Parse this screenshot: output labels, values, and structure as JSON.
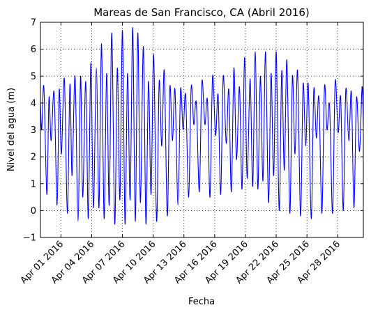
{
  "chart_data": {
    "type": "line",
    "title": "Mareas de San Francisco, CA (Abril 2016)",
    "xlabel": "Fecha",
    "ylabel": "Nivel del agua (m)",
    "xlim": [
      "2016-03-30",
      "2016-04-30T12:00"
    ],
    "ylim": [
      -1,
      7
    ],
    "grid": true,
    "line_color": "#0000ff",
    "x_ticks": [
      "2016-04-01",
      "2016-04-04",
      "2016-04-07",
      "2016-04-10",
      "2016-04-13",
      "2016-04-16",
      "2016-04-19",
      "2016-04-22",
      "2016-04-25",
      "2016-04-28"
    ],
    "x_tick_labels": [
      "Apr 01 2016",
      "Apr 04 2016",
      "Apr 07 2016",
      "Apr 10 2016",
      "Apr 13 2016",
      "Apr 16 2016",
      "Apr 19 2016",
      "Apr 22 2016",
      "Apr 25 2016",
      "Apr 28 2016"
    ],
    "y_ticks": [
      -1,
      0,
      1,
      2,
      3,
      4,
      5,
      6,
      7
    ],
    "y_tick_labels": [
      "−1",
      "0",
      "1",
      "2",
      "3",
      "4",
      "5",
      "6",
      "7"
    ],
    "series": [
      {
        "points": [
          [
            "2016-03-30T00:00",
            4.0
          ],
          [
            "2016-03-30T03:00",
            3.0
          ],
          [
            "2016-03-30T08:00",
            4.6
          ],
          [
            "2016-03-30T15:00",
            0.6
          ],
          [
            "2016-03-30T20:00",
            4.2
          ],
          [
            "2016-03-31T01:00",
            2.6
          ],
          [
            "2016-03-31T08:00",
            4.4
          ],
          [
            "2016-03-31T15:00",
            0.2
          ],
          [
            "2016-03-31T20:00",
            4.5
          ],
          [
            "2016-04-01T01:00",
            2.1
          ],
          [
            "2016-04-01T08:00",
            4.9
          ],
          [
            "2016-04-01T15:00",
            -0.1
          ],
          [
            "2016-04-01T21:00",
            4.7
          ],
          [
            "2016-04-02T02:00",
            1.3
          ],
          [
            "2016-04-02T09:00",
            5.0
          ],
          [
            "2016-04-02T16:00",
            -0.4
          ],
          [
            "2016-04-02T22:00",
            5.0
          ],
          [
            "2016-04-03T03:00",
            0.5
          ],
          [
            "2016-04-03T10:00",
            4.8
          ],
          [
            "2016-04-03T16:00",
            -0.3
          ],
          [
            "2016-04-03T22:00",
            5.5
          ],
          [
            "2016-04-04T04:00",
            0.1
          ],
          [
            "2016-04-04T11:00",
            5.3
          ],
          [
            "2016-04-04T17:00",
            0.1
          ],
          [
            "2016-04-04T23:00",
            6.2
          ],
          [
            "2016-04-05T05:00",
            -0.3
          ],
          [
            "2016-04-05T11:00",
            5.1
          ],
          [
            "2016-04-05T17:00",
            0.2
          ],
          [
            "2016-04-05T23:00",
            6.6
          ],
          [
            "2016-04-06T06:00",
            -0.5
          ],
          [
            "2016-04-06T12:00",
            5.3
          ],
          [
            "2016-04-06T18:00",
            0.4
          ],
          [
            "2016-04-07T00:00",
            6.7
          ],
          [
            "2016-04-07T06:00",
            -0.5
          ],
          [
            "2016-04-07T12:00",
            5.1
          ],
          [
            "2016-04-07T18:00",
            0.4
          ],
          [
            "2016-04-08T00:00",
            6.8
          ],
          [
            "2016-04-08T06:00",
            -0.4
          ],
          [
            "2016-04-08T12:00",
            6.6
          ],
          [
            "2016-04-08T18:00",
            0.3
          ],
          [
            "2016-04-09T01:00",
            6.1
          ],
          [
            "2016-04-09T07:00",
            -0.5
          ],
          [
            "2016-04-09T13:00",
            4.8
          ],
          [
            "2016-04-09T19:00",
            0.6
          ],
          [
            "2016-04-10T01:00",
            5.8
          ],
          [
            "2016-04-10T08:00",
            -0.4
          ],
          [
            "2016-04-10T14:00",
            4.8
          ],
          [
            "2016-04-10T20:00",
            2.4
          ],
          [
            "2016-04-11T02:00",
            5.2
          ],
          [
            "2016-04-11T09:00",
            -0.2
          ],
          [
            "2016-04-11T15:00",
            4.6
          ],
          [
            "2016-04-11T21:00",
            2.6
          ],
          [
            "2016-04-12T03:00",
            4.5
          ],
          [
            "2016-04-12T10:00",
            0.2
          ],
          [
            "2016-04-12T16:00",
            4.5
          ],
          [
            "2016-04-12T22:00",
            3.0
          ],
          [
            "2016-04-13T04:00",
            4.3
          ],
          [
            "2016-04-13T11:00",
            0.5
          ],
          [
            "2016-04-13T17:00",
            4.6
          ],
          [
            "2016-04-13T23:00",
            3.2
          ],
          [
            "2016-04-14T05:00",
            4.0
          ],
          [
            "2016-04-14T12:00",
            0.7
          ],
          [
            "2016-04-14T18:00",
            4.8
          ],
          [
            "2016-04-15T01:00",
            3.2
          ],
          [
            "2016-04-15T07:00",
            4.1
          ],
          [
            "2016-04-15T13:00",
            0.5
          ],
          [
            "2016-04-15T19:00",
            5.0
          ],
          [
            "2016-04-16T02:00",
            2.8
          ],
          [
            "2016-04-16T08:00",
            4.3
          ],
          [
            "2016-04-16T14:00",
            0.6
          ],
          [
            "2016-04-16T20:00",
            5.0
          ],
          [
            "2016-04-17T03:00",
            2.5
          ],
          [
            "2016-04-17T09:00",
            4.5
          ],
          [
            "2016-04-17T15:00",
            0.7
          ],
          [
            "2016-04-17T21:00",
            5.3
          ],
          [
            "2016-04-18T03:00",
            1.9
          ],
          [
            "2016-04-18T10:00",
            4.6
          ],
          [
            "2016-04-18T16:00",
            0.8
          ],
          [
            "2016-04-18T22:00",
            5.7
          ],
          [
            "2016-04-19T04:00",
            1.2
          ],
          [
            "2016-04-19T11:00",
            4.9
          ],
          [
            "2016-04-19T17:00",
            0.9
          ],
          [
            "2016-04-19T23:00",
            5.9
          ],
          [
            "2016-04-20T05:00",
            0.8
          ],
          [
            "2016-04-20T11:00",
            5.0
          ],
          [
            "2016-04-20T17:00",
            1.1
          ],
          [
            "2016-04-20T23:00",
            5.9
          ],
          [
            "2016-04-21T06:00",
            0.3
          ],
          [
            "2016-04-21T12:00",
            5.1
          ],
          [
            "2016-04-21T18:00",
            1.3
          ],
          [
            "2016-04-22T00:00",
            5.9
          ],
          [
            "2016-04-22T07:00",
            0.0
          ],
          [
            "2016-04-22T13:00",
            5.2
          ],
          [
            "2016-04-22T19:00",
            1.5
          ],
          [
            "2016-04-23T01:00",
            5.6
          ],
          [
            "2016-04-23T08:00",
            -0.1
          ],
          [
            "2016-04-23T14:00",
            5.0
          ],
          [
            "2016-04-23T20:00",
            2.1
          ],
          [
            "2016-04-24T02:00",
            5.2
          ],
          [
            "2016-04-24T09:00",
            -0.2
          ],
          [
            "2016-04-24T15:00",
            4.7
          ],
          [
            "2016-04-24T21:00",
            2.4
          ],
          [
            "2016-04-25T03:00",
            4.7
          ],
          [
            "2016-04-25T10:00",
            -0.3
          ],
          [
            "2016-04-25T16:00",
            4.5
          ],
          [
            "2016-04-25T22:00",
            2.7
          ],
          [
            "2016-04-26T04:00",
            4.2
          ],
          [
            "2016-04-26T11:00",
            -0.1
          ],
          [
            "2016-04-26T17:00",
            4.6
          ],
          [
            "2016-04-26T23:00",
            3.0
          ],
          [
            "2016-04-27T05:00",
            3.9
          ],
          [
            "2016-04-27T12:00",
            -0.1
          ],
          [
            "2016-04-27T18:00",
            4.8
          ],
          [
            "2016-04-28T01:00",
            2.9
          ],
          [
            "2016-04-28T07:00",
            4.2
          ],
          [
            "2016-04-28T13:00",
            0.0
          ],
          [
            "2016-04-28T19:00",
            4.5
          ],
          [
            "2016-04-29T02:00",
            2.6
          ],
          [
            "2016-04-29T08:00",
            4.4
          ],
          [
            "2016-04-29T14:00",
            0.1
          ],
          [
            "2016-04-29T20:00",
            4.2
          ],
          [
            "2016-04-30T03:00",
            2.2
          ],
          [
            "2016-04-30T09:00",
            4.6
          ],
          [
            "2016-04-30T12:00",
            3.2
          ]
        ]
      }
    ]
  }
}
